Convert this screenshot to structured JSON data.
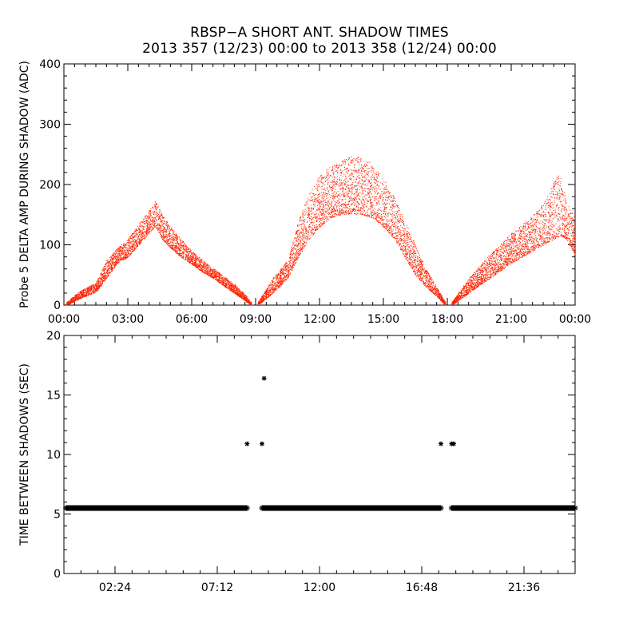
{
  "title_line1": "RBSP−A SHORT ANT. SHADOW TIMES",
  "title_line2": "2013 357 (12/23) 00:00 to 2013 358 (12/24) 00:00",
  "colors": {
    "amp_points": "#ff2200",
    "shadow_points": "#000000",
    "axes": "#000000",
    "background": "#ffffff"
  },
  "chart_data": [
    {
      "type": "scatter",
      "name": "delta-amp",
      "ylabel": "Probe 5 DELTA AMP DURING SHADOW (ADC)",
      "xlabel": "",
      "xlim": [
        0,
        24
      ],
      "ylim": [
        0,
        400
      ],
      "x_ticks": [
        0,
        3,
        6,
        9,
        12,
        15,
        18,
        21,
        24
      ],
      "x_tick_labels": [
        "00:00",
        "03:00",
        "06:00",
        "09:00",
        "12:00",
        "15:00",
        "18:00",
        "21:00",
        "00:00"
      ],
      "y_ticks": [
        0,
        100,
        200,
        300,
        400
      ],
      "y_tick_labels": [
        "0",
        "100",
        "200",
        "300",
        "400"
      ],
      "series": [
        {
          "name": "shadow-arc-1",
          "envelope": {
            "x": [
              0.1,
              0.8,
              1.5,
              2.0,
              2.5,
              3.0,
              3.5,
              4.0,
              4.3,
              4.6,
              5.0,
              5.5,
              6.0,
              6.5,
              7.0,
              7.5,
              8.0,
              8.4,
              8.8
            ],
            "low": [
              0,
              12,
              22,
              45,
              70,
              80,
              100,
              120,
              130,
              110,
              95,
              80,
              68,
              55,
              45,
              32,
              20,
              10,
              0
            ],
            "high": [
              5,
              25,
              38,
              75,
              95,
              110,
              135,
              158,
              175,
              150,
              130,
              110,
              90,
              75,
              62,
              48,
              35,
              22,
              5
            ]
          }
        },
        {
          "name": "shadow-arc-2",
          "envelope": {
            "x": [
              9.1,
              9.8,
              10.5,
              11.0,
              11.5,
              12.0,
              12.5,
              13.0,
              13.5,
              14.0,
              14.5,
              15.0,
              15.5,
              16.0,
              16.5,
              17.0,
              17.5,
              17.9
            ],
            "low": [
              0,
              20,
              45,
              80,
              110,
              130,
              145,
              150,
              152,
              150,
              145,
              130,
              110,
              80,
              50,
              30,
              15,
              0
            ],
            "high": [
              5,
              45,
              75,
              140,
              185,
              215,
              230,
              240,
              248,
              245,
              235,
              210,
              180,
              140,
              100,
              60,
              30,
              5
            ]
          }
        },
        {
          "name": "shadow-arc-3",
          "envelope": {
            "x": [
              18.2,
              19.0,
              20.0,
              21.0,
              22.0,
              22.5,
              23.0,
              23.3,
              23.6,
              24.0
            ],
            "low": [
              0,
              20,
              45,
              70,
              90,
              100,
              110,
              115,
              110,
              80
            ],
            "high": [
              5,
              45,
              85,
              120,
              150,
              170,
              205,
              220,
              170,
              145
            ]
          }
        }
      ]
    },
    {
      "type": "scatter",
      "name": "time-between-shadows",
      "ylabel": "TIME BETWEEN SHADOWS (SEC)",
      "xlabel": "",
      "xlim": [
        0,
        24
      ],
      "ylim": [
        0,
        20
      ],
      "x_ticks": [
        2.4,
        7.2,
        12.0,
        16.8,
        21.6
      ],
      "x_tick_labels": [
        "02:24",
        "07:12",
        "12:00",
        "16:48",
        "21:36"
      ],
      "y_ticks": [
        0,
        5,
        10,
        15,
        20
      ],
      "y_tick_labels": [
        "0",
        "5",
        "10",
        "15",
        "20"
      ],
      "baseline": {
        "value": 5.5,
        "segments": [
          [
            0.1,
            8.6
          ],
          [
            9.3,
            17.7
          ],
          [
            18.2,
            24.0
          ]
        ]
      },
      "outliers": {
        "x": [
          8.6,
          9.3,
          9.4,
          17.7,
          18.2,
          18.3
        ],
        "y": [
          10.9,
          10.9,
          16.4,
          10.9,
          10.9,
          10.9
        ]
      }
    }
  ]
}
